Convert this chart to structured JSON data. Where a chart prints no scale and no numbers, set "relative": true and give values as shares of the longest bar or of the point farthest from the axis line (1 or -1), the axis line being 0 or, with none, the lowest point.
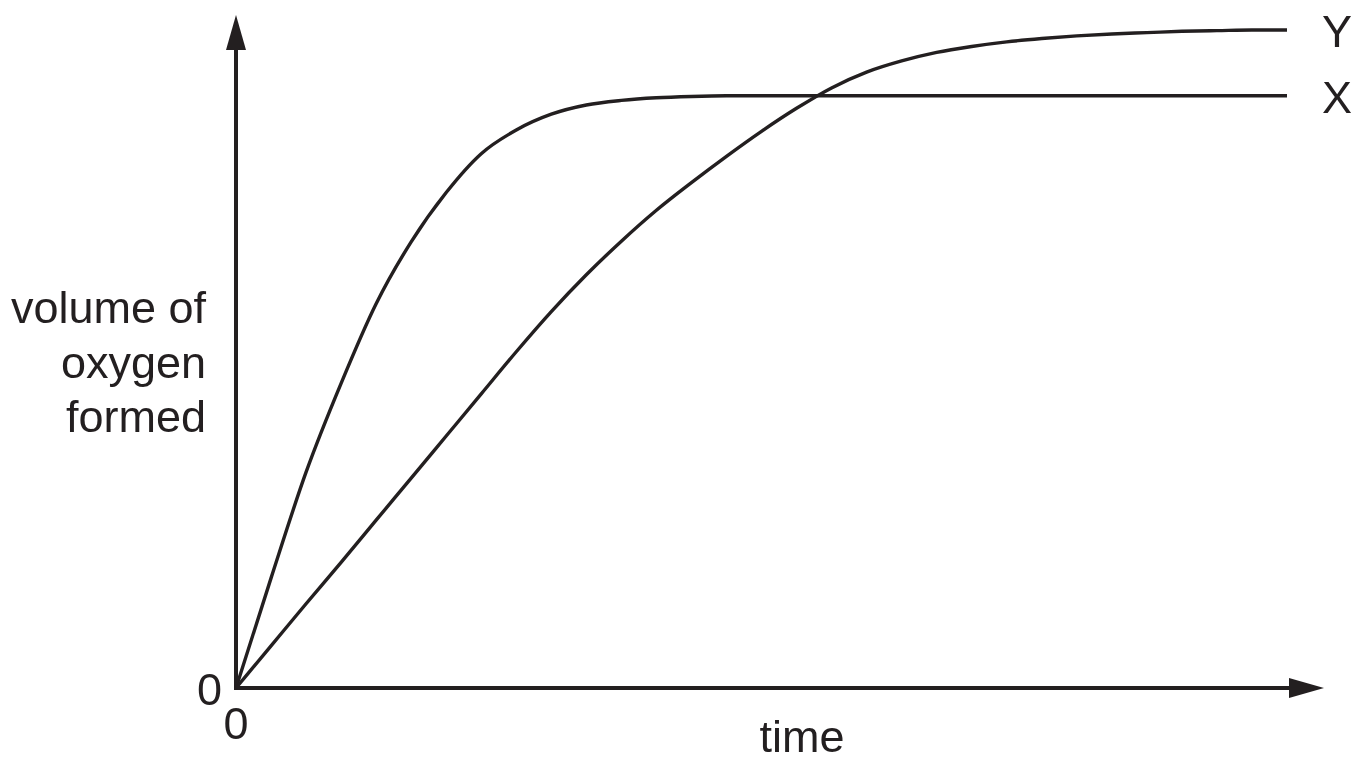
{
  "chart_data": {
    "type": "line",
    "relative": true,
    "xlabel": "time",
    "ylabel": "volume of\noxygen\nformed",
    "categories": [
      null,
      null,
      null,
      null,
      null,
      null,
      null,
      null,
      null,
      null,
      null,
      null,
      null,
      null,
      null,
      null,
      null,
      null,
      null,
      null,
      null,
      null,
      null,
      null,
      null,
      null,
      null,
      null,
      null,
      null,
      null
    ],
    "series": [
      {
        "name": "X",
        "color": "#231f20",
        "values": [
          0,
          0.167,
          0.328,
          0.463,
          0.584,
          0.678,
          0.753,
          0.812,
          0.848,
          0.872,
          0.886,
          0.893,
          0.897,
          0.899,
          0.9,
          0.9,
          0.9,
          0.9,
          0.9,
          0.9,
          0.9,
          0.9,
          0.9,
          0.9,
          0.9,
          0.9,
          0.9,
          0.9,
          0.9,
          0.9,
          0.9
        ]
      },
      {
        "name": "Y",
        "color": "#231f20",
        "values": [
          0,
          0.064,
          0.128,
          0.191,
          0.255,
          0.319,
          0.383,
          0.447,
          0.511,
          0.572,
          0.628,
          0.679,
          0.726,
          0.768,
          0.808,
          0.846,
          0.881,
          0.912,
          0.936,
          0.953,
          0.966,
          0.975,
          0.982,
          0.987,
          0.991,
          0.994,
          0.996,
          0.998,
          0.999,
          1.0,
          1.0
        ]
      }
    ],
    "annotations": [
      "0",
      "0"
    ]
  }
}
